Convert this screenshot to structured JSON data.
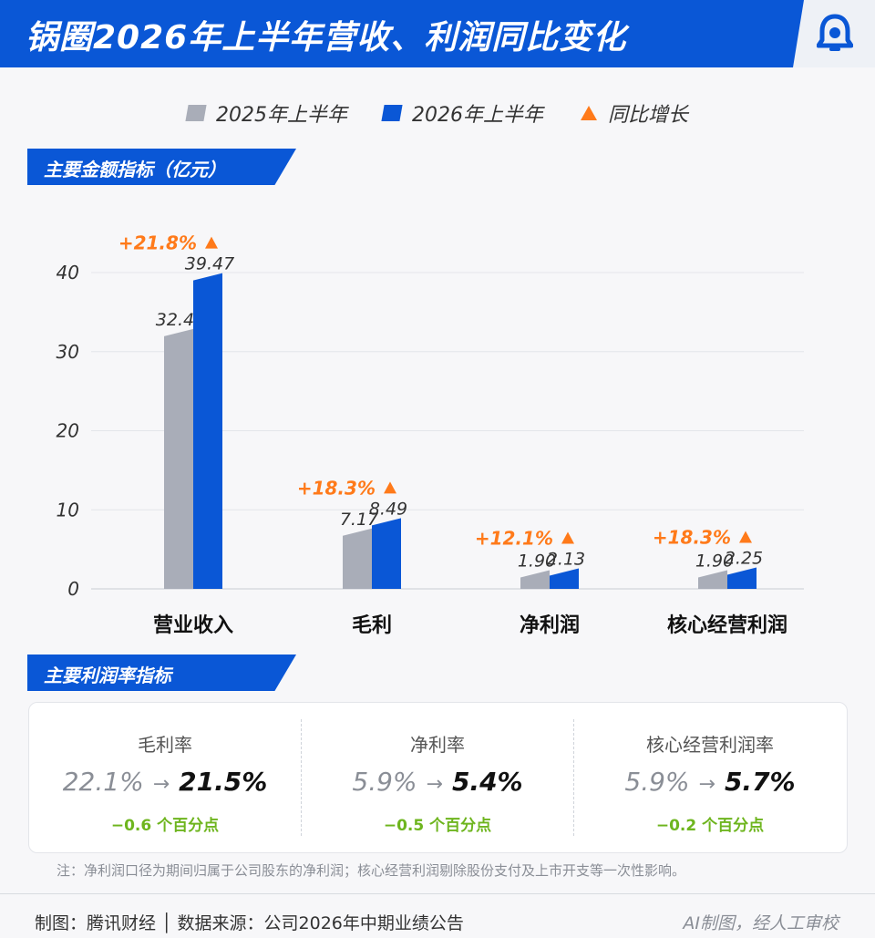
{
  "header": {
    "title": "锅圈2026年上半年营收、利润同比变化",
    "logo_icon": "bell-logo-icon"
  },
  "colors": {
    "brand_blue": "#0a57d6",
    "series_2025": "#a9adb8",
    "series_2026": "#0a57d6",
    "growth": "#ff7a1a",
    "decline": "#6eb51e"
  },
  "legend": {
    "items": [
      {
        "label": "2025年上半年",
        "swatch": "gray-bar"
      },
      {
        "label": "2026年上半年",
        "swatch": "blue-bar"
      },
      {
        "label": "同比增长",
        "swatch": "orange-triangle"
      }
    ]
  },
  "sections": {
    "amounts_title": "主要金额指标（亿元）",
    "rates_title": "主要利润率指标"
  },
  "chart_data": {
    "type": "bar",
    "categories": [
      "营业收入",
      "毛利",
      "净利润",
      "核心经营利润"
    ],
    "series": [
      {
        "name": "2025年上半年",
        "values": [
          32.4,
          7.17,
          1.9,
          1.9
        ],
        "labels": [
          "32.40",
          "7.17",
          "1.90",
          "1.90"
        ]
      },
      {
        "name": "2026年上半年",
        "values": [
          39.47,
          8.49,
          2.13,
          2.25
        ],
        "labels": [
          "39.47",
          "8.49",
          "2.13",
          "2.25"
        ]
      }
    ],
    "growth": [
      "+21.8%",
      "+18.3%",
      "+12.1%",
      "+18.3%"
    ],
    "yticks": [
      "0",
      "10",
      "20",
      "30",
      "40"
    ],
    "ylim": [
      0,
      40
    ],
    "grid": true
  },
  "metrics": [
    {
      "label": "毛利率",
      "old": "22.1%",
      "arrow": "→",
      "new": "21.5%",
      "change": "−0.6 个百分点"
    },
    {
      "label": "净利率",
      "old": "5.9%",
      "arrow": "→",
      "new": "5.4%",
      "change": "−0.5 个百分点"
    },
    {
      "label": "核心经营利润率",
      "old": "5.9%",
      "arrow": "→",
      "new": "5.7%",
      "change": "−0.2 个百分点"
    }
  ],
  "note": "注：净利润口径为期间归属于公司股东的净利润；核心经营利润剔除股份支付及上市开支等一次性影响。",
  "footer": {
    "left": "制图：腾讯财经 │ 数据来源：公司2026年中期业绩公告",
    "right": "AI制图，经人工审校"
  }
}
